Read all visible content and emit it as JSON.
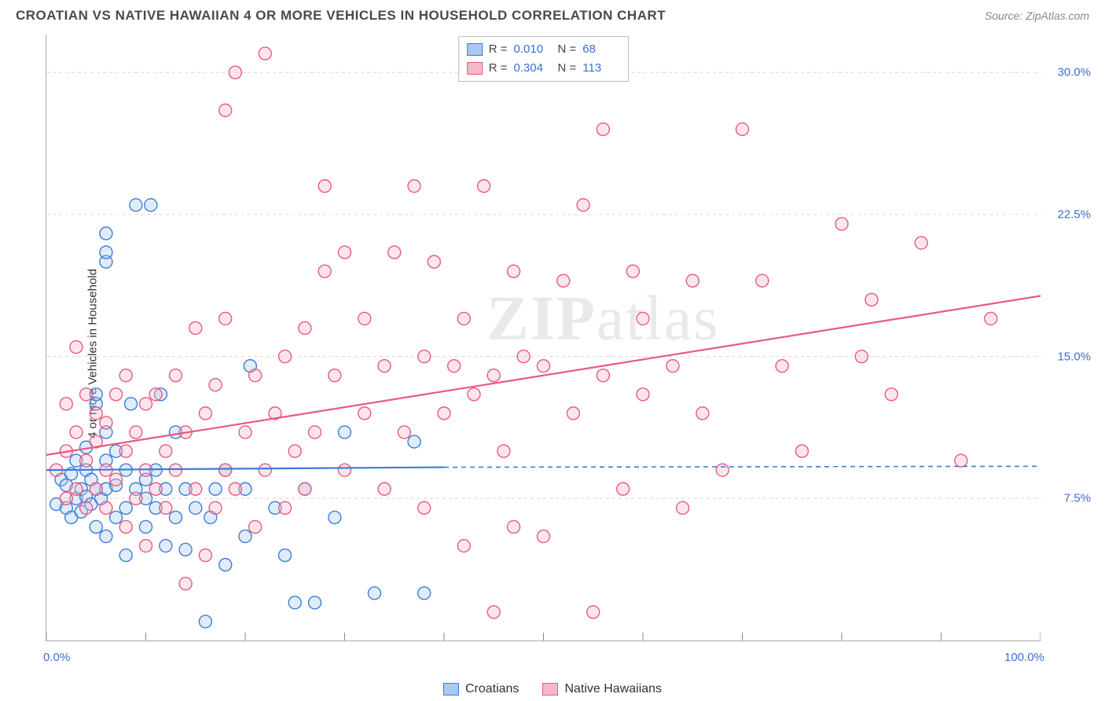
{
  "header": {
    "title": "CROATIAN VS NATIVE HAWAIIAN 4 OR MORE VEHICLES IN HOUSEHOLD CORRELATION CHART",
    "source": "Source: ZipAtlas.com"
  },
  "chart": {
    "type": "scatter",
    "ylabel": "4 or more Vehicles in Household",
    "watermark": "ZIPatlas",
    "xlim": [
      0,
      100
    ],
    "ylim": [
      0,
      32
    ],
    "x_ticks": [
      0,
      10,
      20,
      30,
      40,
      50,
      60,
      70,
      80,
      90,
      100
    ],
    "x_tick_labels": {
      "0": "0.0%",
      "100": "100.0%"
    },
    "y_gridlines": [
      7.5,
      15.0,
      22.5,
      30.0
    ],
    "y_tick_labels": [
      "7.5%",
      "15.0%",
      "22.5%",
      "30.0%"
    ],
    "grid_color": "#d8d8d8",
    "background_color": "#ffffff",
    "marker_radius": 8,
    "marker_fill_opacity": 0.35,
    "marker_stroke_width": 1.4,
    "series": [
      {
        "name": "Croatians",
        "color_stroke": "#3b7dd8",
        "color_fill": "#a9c9f0",
        "R": "0.010",
        "N": "68",
        "trend": {
          "x1": 0,
          "y1": 9.0,
          "x2": 40,
          "y2": 9.15,
          "dash_from_x": 40,
          "dash_to_x": 100,
          "dash_y": 9.2
        },
        "points": [
          [
            1,
            7.2
          ],
          [
            1.5,
            8.5
          ],
          [
            2,
            7
          ],
          [
            2,
            8.2
          ],
          [
            2.5,
            6.5
          ],
          [
            2.5,
            8.8
          ],
          [
            3,
            7.5
          ],
          [
            3,
            9.5
          ],
          [
            3.5,
            6.8
          ],
          [
            3.5,
            8
          ],
          [
            4,
            7.6
          ],
          [
            4,
            9
          ],
          [
            4,
            10.2
          ],
          [
            4.5,
            7.2
          ],
          [
            4.5,
            8.5
          ],
          [
            5,
            6
          ],
          [
            5,
            8
          ],
          [
            5,
            12.5
          ],
          [
            5,
            13
          ],
          [
            5.5,
            7.5
          ],
          [
            6,
            5.5
          ],
          [
            6,
            8
          ],
          [
            6,
            9.5
          ],
          [
            6,
            11
          ],
          [
            6,
            20
          ],
          [
            6,
            20.5
          ],
          [
            6,
            21.5
          ],
          [
            7,
            6.5
          ],
          [
            7,
            8.2
          ],
          [
            7,
            10
          ],
          [
            8,
            4.5
          ],
          [
            8,
            7
          ],
          [
            8,
            9
          ],
          [
            8.5,
            12.5
          ],
          [
            9,
            8
          ],
          [
            9,
            23
          ],
          [
            10,
            6
          ],
          [
            10,
            7.5
          ],
          [
            10,
            8.5
          ],
          [
            10.5,
            23
          ],
          [
            11,
            7
          ],
          [
            11,
            9
          ],
          [
            11.5,
            13
          ],
          [
            12,
            5
          ],
          [
            12,
            8
          ],
          [
            13,
            6.5
          ],
          [
            13,
            11
          ],
          [
            14,
            4.8
          ],
          [
            14,
            8
          ],
          [
            15,
            7
          ],
          [
            16,
            1
          ],
          [
            16.5,
            6.5
          ],
          [
            17,
            8
          ],
          [
            18,
            4
          ],
          [
            18,
            9
          ],
          [
            20,
            5.5
          ],
          [
            20,
            8
          ],
          [
            20.5,
            14.5
          ],
          [
            23,
            7
          ],
          [
            24,
            4.5
          ],
          [
            25,
            2
          ],
          [
            26,
            8
          ],
          [
            27,
            2
          ],
          [
            29,
            6.5
          ],
          [
            30,
            11
          ],
          [
            33,
            2.5
          ],
          [
            37,
            10.5
          ],
          [
            38,
            2.5
          ]
        ]
      },
      {
        "name": "Native Hawaiians",
        "color_stroke": "#e85a7f",
        "color_fill": "#f5b8c8",
        "R": "0.304",
        "N": "113",
        "trend": {
          "x1": 0,
          "y1": 9.8,
          "x2": 100,
          "y2": 18.2
        },
        "points": [
          [
            1,
            9
          ],
          [
            2,
            7.5
          ],
          [
            2,
            10
          ],
          [
            2,
            12.5
          ],
          [
            3,
            8
          ],
          [
            3,
            11
          ],
          [
            3,
            15.5
          ],
          [
            4,
            7
          ],
          [
            4,
            9.5
          ],
          [
            4,
            13
          ],
          [
            5,
            8
          ],
          [
            5,
            10.5
          ],
          [
            5,
            12
          ],
          [
            6,
            7
          ],
          [
            6,
            9
          ],
          [
            6,
            11.5
          ],
          [
            7,
            8.5
          ],
          [
            7,
            13
          ],
          [
            8,
            6
          ],
          [
            8,
            10
          ],
          [
            8,
            14
          ],
          [
            9,
            7.5
          ],
          [
            9,
            11
          ],
          [
            10,
            5
          ],
          [
            10,
            9
          ],
          [
            10,
            12.5
          ],
          [
            11,
            8
          ],
          [
            11,
            13
          ],
          [
            12,
            7
          ],
          [
            12,
            10
          ],
          [
            13,
            9
          ],
          [
            13,
            14
          ],
          [
            14,
            3
          ],
          [
            14,
            11
          ],
          [
            15,
            8
          ],
          [
            15,
            16.5
          ],
          [
            16,
            4.5
          ],
          [
            16,
            12
          ],
          [
            17,
            7
          ],
          [
            17,
            13.5
          ],
          [
            18,
            9
          ],
          [
            18,
            17
          ],
          [
            18,
            28
          ],
          [
            19,
            8
          ],
          [
            19,
            30
          ],
          [
            20,
            11
          ],
          [
            21,
            6
          ],
          [
            21,
            14
          ],
          [
            22,
            9
          ],
          [
            22,
            31
          ],
          [
            23,
            12
          ],
          [
            24,
            7
          ],
          [
            24,
            15
          ],
          [
            25,
            10
          ],
          [
            26,
            8
          ],
          [
            26,
            16.5
          ],
          [
            27,
            11
          ],
          [
            28,
            19.5
          ],
          [
            28,
            24
          ],
          [
            29,
            14
          ],
          [
            30,
            9
          ],
          [
            30,
            20.5
          ],
          [
            32,
            12
          ],
          [
            32,
            17
          ],
          [
            34,
            8
          ],
          [
            34,
            14.5
          ],
          [
            35,
            20.5
          ],
          [
            36,
            11
          ],
          [
            37,
            24
          ],
          [
            38,
            7
          ],
          [
            38,
            15
          ],
          [
            39,
            20
          ],
          [
            40,
            12
          ],
          [
            41,
            14.5
          ],
          [
            42,
            5
          ],
          [
            42,
            17
          ],
          [
            43,
            13
          ],
          [
            44,
            24
          ],
          [
            45,
            1.5
          ],
          [
            45,
            14
          ],
          [
            46,
            10
          ],
          [
            47,
            6
          ],
          [
            47,
            19.5
          ],
          [
            48,
            15
          ],
          [
            48,
            30
          ],
          [
            50,
            5.5
          ],
          [
            50,
            14.5
          ],
          [
            52,
            19
          ],
          [
            53,
            12
          ],
          [
            54,
            23
          ],
          [
            55,
            1.5
          ],
          [
            56,
            14
          ],
          [
            56,
            27
          ],
          [
            58,
            8
          ],
          [
            59,
            19.5
          ],
          [
            60,
            13
          ],
          [
            60,
            17
          ],
          [
            63,
            14.5
          ],
          [
            64,
            7
          ],
          [
            65,
            19
          ],
          [
            66,
            12
          ],
          [
            68,
            9
          ],
          [
            70,
            27
          ],
          [
            72,
            19
          ],
          [
            74,
            14.5
          ],
          [
            76,
            10
          ],
          [
            80,
            22
          ],
          [
            82,
            15
          ],
          [
            83,
            18
          ],
          [
            85,
            13
          ],
          [
            88,
            21
          ],
          [
            92,
            9.5
          ],
          [
            95,
            17
          ]
        ]
      }
    ],
    "legend_bottom": [
      {
        "label": "Croatians",
        "series": 0
      },
      {
        "label": "Native Hawaiians",
        "series": 1
      }
    ]
  }
}
